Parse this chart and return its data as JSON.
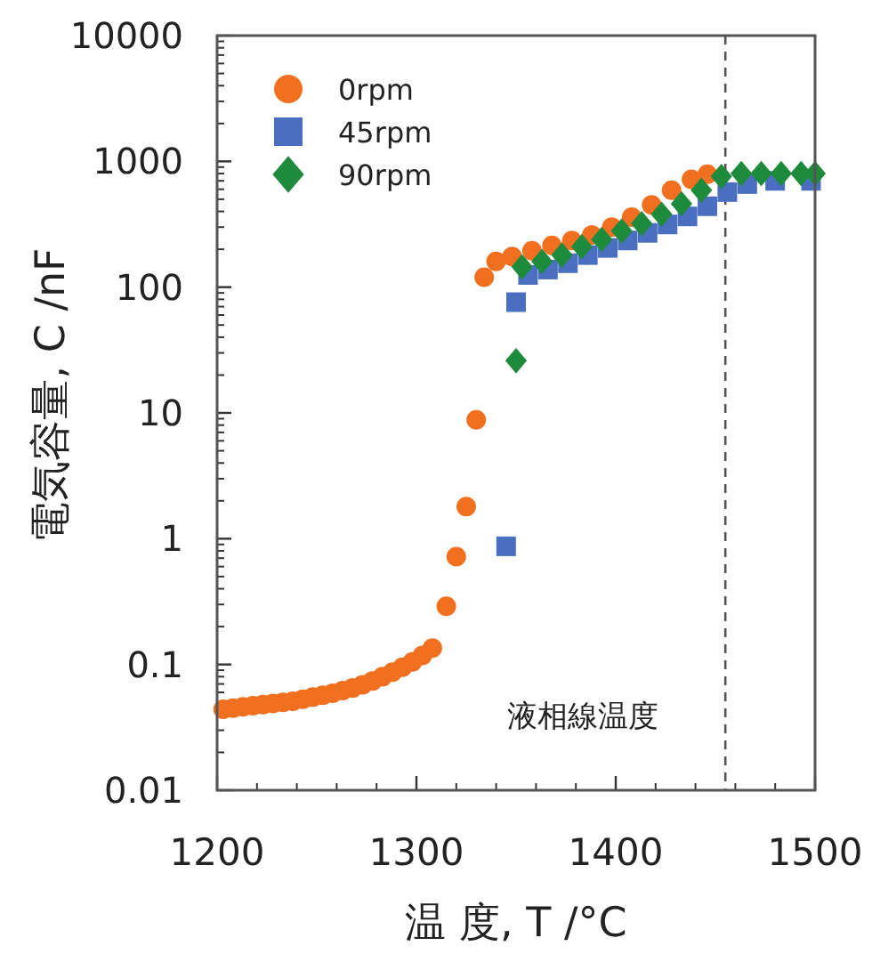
{
  "chart_data": {
    "type": "scatter",
    "xlabel": "温 度, T /°C",
    "ylabel": "電気容量, C /nF",
    "xlim": [
      1200,
      1500
    ],
    "xticks": [
      1200,
      1300,
      1400,
      1500
    ],
    "ylim": [
      0.01,
      10000
    ],
    "yticks": [
      0.01,
      0.1,
      1,
      10,
      100,
      1000,
      10000
    ],
    "log": "y",
    "legend": "top left",
    "grid": false,
    "ref_lines": [
      {
        "axis": "x",
        "value": 1455,
        "label": "液相線温度",
        "line_style": "dashed",
        "color": "#555555"
      }
    ],
    "series": [
      {
        "name": "0rpm",
        "color": "#f07020",
        "marker": "circle",
        "x": [
          1203,
          1208,
          1213,
          1218,
          1223,
          1228,
          1233,
          1238,
          1243,
          1248,
          1253,
          1258,
          1263,
          1268,
          1273,
          1278,
          1283,
          1288,
          1293,
          1298,
          1303,
          1308,
          1315,
          1320,
          1325,
          1330,
          1334,
          1340,
          1348,
          1358,
          1368,
          1378,
          1388,
          1398,
          1408,
          1418,
          1428,
          1438,
          1446
        ],
        "values": [
          0.044,
          0.045,
          0.046,
          0.047,
          0.048,
          0.049,
          0.05,
          0.051,
          0.053,
          0.055,
          0.057,
          0.059,
          0.062,
          0.065,
          0.069,
          0.074,
          0.08,
          0.087,
          0.095,
          0.105,
          0.118,
          0.135,
          0.29,
          0.72,
          1.8,
          8.8,
          120,
          160,
          175,
          195,
          215,
          235,
          260,
          300,
          360,
          450,
          590,
          720,
          790
        ]
      },
      {
        "name": "45rpm",
        "color": "#4a6fc0",
        "marker": "square",
        "x": [
          1345,
          1350,
          1356,
          1366,
          1376,
          1386,
          1396,
          1406,
          1416,
          1426,
          1436,
          1446,
          1456,
          1466,
          1480,
          1498
        ],
        "values": [
          0.87,
          76,
          125,
          138,
          155,
          180,
          205,
          235,
          270,
          315,
          365,
          440,
          570,
          660,
          700,
          700
        ]
      },
      {
        "name": "90rpm",
        "color": "#1e8a3c",
        "marker": "diamond",
        "x": [
          1350,
          1353,
          1363,
          1373,
          1383,
          1393,
          1403,
          1413,
          1423,
          1433,
          1443,
          1453,
          1463,
          1473,
          1483,
          1493,
          1500
        ],
        "values": [
          26,
          145,
          160,
          180,
          210,
          240,
          280,
          320,
          380,
          460,
          590,
          760,
          800,
          800,
          800,
          800,
          800
        ]
      }
    ]
  }
}
